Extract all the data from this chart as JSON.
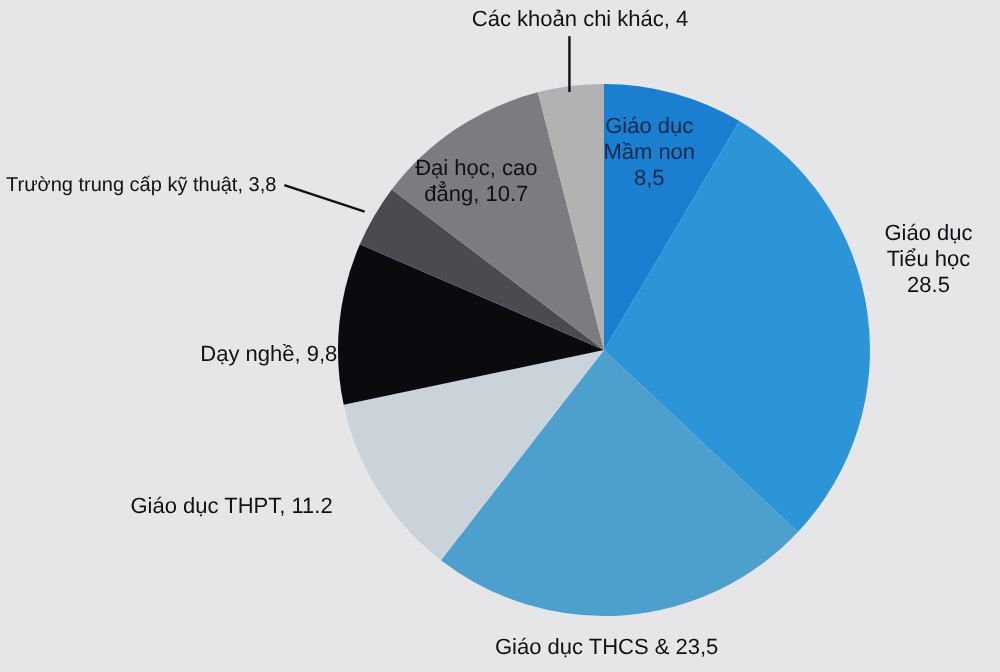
{
  "chart_data": {
    "type": "pie",
    "categories": [
      "Giáo dục Mầm non",
      "Giáo dục Tiểu học",
      "Giáo dục THCS &",
      "Giáo dục THPT",
      "Dạy nghề",
      "Trường trung cấp kỹ thuật",
      "Đại học, cao đẳng",
      "Các khoản chi khác"
    ],
    "values": [
      8.5,
      28.5,
      23.5,
      11.2,
      9.8,
      3.8,
      10.7,
      4
    ],
    "value_labels": [
      "8,5",
      "28.5",
      "23,5",
      "11.2",
      "9,8",
      "3,8",
      "10.7",
      "4"
    ],
    "colors": [
      "#1a7fd0",
      "#2b95d8",
      "#4d9fce",
      "#c9d3d9",
      "#0b0b0f",
      "#4a4a50",
      "#7b7b80",
      "#b2b2b2"
    ]
  }
}
